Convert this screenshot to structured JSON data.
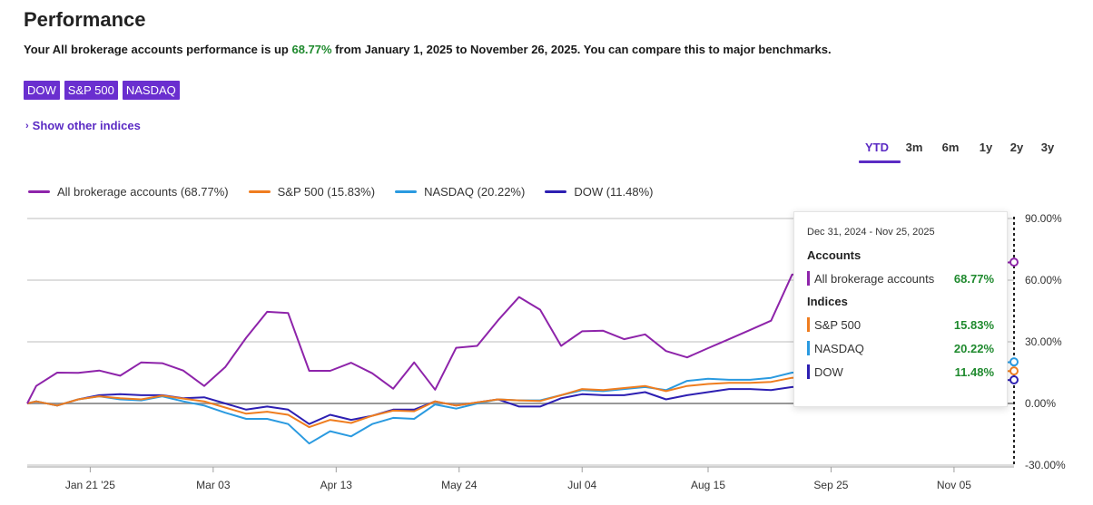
{
  "page": {
    "title": "Performance",
    "summary_prefix": "Your All brokerage accounts performance is up ",
    "summary_value": "68.77%",
    "summary_suffix": " from January 1, 2025 to November 26, 2025. You can compare this to major benchmarks."
  },
  "benchmarks": [
    "DOW",
    "S&P 500",
    "NASDAQ"
  ],
  "show_other": {
    "label": "Show other indices"
  },
  "ranges": {
    "items": [
      "YTD",
      "3m",
      "6m",
      "1y",
      "2y",
      "3y"
    ],
    "active": "YTD"
  },
  "legend": [
    {
      "label": "All brokerage accounts (68.77%)",
      "color": "#8e24aa"
    },
    {
      "label": "S&P 500 (15.83%)",
      "color": "#ef7d1f"
    },
    {
      "label": "NASDAQ (20.22%)",
      "color": "#2a9ae0"
    },
    {
      "label": "DOW (11.48%)",
      "color": "#2d1fb2"
    }
  ],
  "tooltip": {
    "range": "Dec 31, 2024 - Nov 25, 2025",
    "accounts_header": "Accounts",
    "indices_header": "Indices",
    "accounts": [
      {
        "label": "All brokerage accounts",
        "value": "68.77%",
        "color": "#8e24aa"
      }
    ],
    "indices": [
      {
        "label": "S&P 500",
        "value": "15.83%",
        "color": "#ef7d1f"
      },
      {
        "label": "NASDAQ",
        "value": "20.22%",
        "color": "#2a9ae0"
      },
      {
        "label": "DOW",
        "value": "11.48%",
        "color": "#2d1fb2"
      }
    ]
  },
  "chart_data": {
    "type": "line",
    "ylim": [
      -30,
      90
    ],
    "yticks": [
      90,
      60,
      30,
      0,
      -30
    ],
    "ytick_labels": [
      "90.00%",
      "60.00%",
      "30.00%",
      "0.00%",
      "-30.00%"
    ],
    "x_start": "2024-12-31",
    "x_end": "2025-11-25",
    "xticks": [
      {
        "date": "2025-01-21",
        "label": "Jan 21 '25"
      },
      {
        "date": "2025-03-03",
        "label": "Mar 03"
      },
      {
        "date": "2025-04-13",
        "label": "Apr 13"
      },
      {
        "date": "2025-05-24",
        "label": "May 24"
      },
      {
        "date": "2025-07-04",
        "label": "Jul 04"
      },
      {
        "date": "2025-08-15",
        "label": "Aug 15"
      },
      {
        "date": "2025-09-25",
        "label": "Sep 25"
      },
      {
        "date": "2025-11-05",
        "label": "Nov 05"
      }
    ],
    "grid": true,
    "series": [
      {
        "name": "All brokerage accounts (68.77%)",
        "color": "#8e24aa",
        "points": [
          [
            "2024-12-31",
            0
          ],
          [
            "2025-01-03",
            8.5
          ],
          [
            "2025-01-10",
            15
          ],
          [
            "2025-01-17",
            14.9
          ],
          [
            "2025-01-24",
            16
          ],
          [
            "2025-01-31",
            13.5
          ],
          [
            "2025-02-07",
            20
          ],
          [
            "2025-02-14",
            19.6
          ],
          [
            "2025-02-21",
            16
          ],
          [
            "2025-02-28",
            8.5
          ],
          [
            "2025-03-07",
            17.7
          ],
          [
            "2025-03-14",
            32
          ],
          [
            "2025-03-21",
            44.6
          ],
          [
            "2025-03-28",
            44
          ],
          [
            "2025-04-04",
            15.9
          ],
          [
            "2025-04-11",
            15.9
          ],
          [
            "2025-04-18",
            19.8
          ],
          [
            "2025-04-25",
            14.7
          ],
          [
            "2025-05-02",
            7.2
          ],
          [
            "2025-05-09",
            20
          ],
          [
            "2025-05-16",
            6.7
          ],
          [
            "2025-05-23",
            27.1
          ],
          [
            "2025-05-30",
            28
          ],
          [
            "2025-06-06",
            40.5
          ],
          [
            "2025-06-13",
            51.8
          ],
          [
            "2025-06-20",
            45.6
          ],
          [
            "2025-06-27",
            28
          ],
          [
            "2025-07-04",
            35.1
          ],
          [
            "2025-07-11",
            35.4
          ],
          [
            "2025-07-18",
            31.3
          ],
          [
            "2025-07-25",
            33.6
          ],
          [
            "2025-08-01",
            25.5
          ],
          [
            "2025-08-08",
            22.4
          ],
          [
            "2025-08-15",
            26.9
          ],
          [
            "2025-08-22",
            31.3
          ],
          [
            "2025-08-29",
            35.8
          ],
          [
            "2025-09-05",
            40.3
          ],
          [
            "2025-09-12",
            62.7
          ],
          [
            "2025-11-25",
            68.77
          ]
        ]
      },
      {
        "name": "S&P 500 (15.83%)",
        "color": "#ef7d1f",
        "points": [
          [
            "2024-12-31",
            0
          ],
          [
            "2025-01-03",
            1
          ],
          [
            "2025-01-10",
            -1
          ],
          [
            "2025-01-17",
            2
          ],
          [
            "2025-01-24",
            3.5
          ],
          [
            "2025-01-31",
            2.5
          ],
          [
            "2025-02-07",
            2
          ],
          [
            "2025-02-14",
            3.8
          ],
          [
            "2025-02-21",
            2.4
          ],
          [
            "2025-02-28",
            1
          ],
          [
            "2025-03-07",
            -2
          ],
          [
            "2025-03-14",
            -5
          ],
          [
            "2025-03-21",
            -4
          ],
          [
            "2025-03-28",
            -5.5
          ],
          [
            "2025-04-04",
            -11.5
          ],
          [
            "2025-04-11",
            -8
          ],
          [
            "2025-04-18",
            -9.5
          ],
          [
            "2025-04-25",
            -6
          ],
          [
            "2025-05-02",
            -3.5
          ],
          [
            "2025-05-09",
            -3.8
          ],
          [
            "2025-05-16",
            1
          ],
          [
            "2025-05-23",
            -1
          ],
          [
            "2025-05-30",
            0.5
          ],
          [
            "2025-06-06",
            2
          ],
          [
            "2025-06-13",
            1.5
          ],
          [
            "2025-06-20",
            1.2
          ],
          [
            "2025-06-27",
            4
          ],
          [
            "2025-07-04",
            7
          ],
          [
            "2025-07-11",
            6.5
          ],
          [
            "2025-07-18",
            7.5
          ],
          [
            "2025-07-25",
            8.5
          ],
          [
            "2025-08-01",
            6
          ],
          [
            "2025-08-08",
            8.5
          ],
          [
            "2025-08-15",
            9.5
          ],
          [
            "2025-08-22",
            10
          ],
          [
            "2025-08-29",
            10
          ],
          [
            "2025-09-05",
            10.5
          ],
          [
            "2025-09-12",
            12.5
          ],
          [
            "2025-11-25",
            15.83
          ]
        ]
      },
      {
        "name": "NASDAQ (20.22%)",
        "color": "#2a9ae0",
        "points": [
          [
            "2024-12-31",
            0
          ],
          [
            "2025-01-03",
            1
          ],
          [
            "2025-01-10",
            -1
          ],
          [
            "2025-01-17",
            2
          ],
          [
            "2025-01-24",
            3.5
          ],
          [
            "2025-01-31",
            2
          ],
          [
            "2025-02-07",
            1.5
          ],
          [
            "2025-02-14",
            3.5
          ],
          [
            "2025-02-21",
            1
          ],
          [
            "2025-02-28",
            -1
          ],
          [
            "2025-03-07",
            -4.5
          ],
          [
            "2025-03-14",
            -7.5
          ],
          [
            "2025-03-21",
            -7.5
          ],
          [
            "2025-03-28",
            -10
          ],
          [
            "2025-04-04",
            -19.5
          ],
          [
            "2025-04-11",
            -13.5
          ],
          [
            "2025-04-18",
            -16
          ],
          [
            "2025-04-25",
            -10
          ],
          [
            "2025-05-02",
            -7
          ],
          [
            "2025-05-09",
            -7.5
          ],
          [
            "2025-05-16",
            -0.5
          ],
          [
            "2025-05-23",
            -2.5
          ],
          [
            "2025-05-30",
            0
          ],
          [
            "2025-06-06",
            2
          ],
          [
            "2025-06-13",
            1.5
          ],
          [
            "2025-06-20",
            1.5
          ],
          [
            "2025-06-27",
            4
          ],
          [
            "2025-07-04",
            6.5
          ],
          [
            "2025-07-11",
            6
          ],
          [
            "2025-07-18",
            7
          ],
          [
            "2025-07-25",
            8
          ],
          [
            "2025-08-01",
            6.5
          ],
          [
            "2025-08-08",
            11
          ],
          [
            "2025-08-15",
            12
          ],
          [
            "2025-08-22",
            11.5
          ],
          [
            "2025-08-29",
            11.5
          ],
          [
            "2025-09-05",
            12.5
          ],
          [
            "2025-09-12",
            15
          ],
          [
            "2025-11-25",
            20.22
          ]
        ]
      },
      {
        "name": "DOW (11.48%)",
        "color": "#2d1fb2",
        "points": [
          [
            "2024-12-31",
            0
          ],
          [
            "2025-01-03",
            1
          ],
          [
            "2025-01-10",
            -1
          ],
          [
            "2025-01-17",
            2
          ],
          [
            "2025-01-24",
            4
          ],
          [
            "2025-01-31",
            4.5
          ],
          [
            "2025-02-07",
            4
          ],
          [
            "2025-02-14",
            4
          ],
          [
            "2025-02-21",
            2.5
          ],
          [
            "2025-02-28",
            3
          ],
          [
            "2025-03-07",
            0
          ],
          [
            "2025-03-14",
            -3
          ],
          [
            "2025-03-21",
            -1.5
          ],
          [
            "2025-03-28",
            -3
          ],
          [
            "2025-04-04",
            -10
          ],
          [
            "2025-04-11",
            -5.5
          ],
          [
            "2025-04-18",
            -8
          ],
          [
            "2025-04-25",
            -6
          ],
          [
            "2025-05-02",
            -3
          ],
          [
            "2025-05-09",
            -3
          ],
          [
            "2025-05-16",
            1
          ],
          [
            "2025-05-23",
            -1
          ],
          [
            "2025-05-30",
            0.5
          ],
          [
            "2025-06-06",
            2
          ],
          [
            "2025-06-13",
            -1.5
          ],
          [
            "2025-06-20",
            -1.5
          ],
          [
            "2025-06-27",
            2.5
          ],
          [
            "2025-07-04",
            4.5
          ],
          [
            "2025-07-11",
            4
          ],
          [
            "2025-07-18",
            4
          ],
          [
            "2025-07-25",
            5.5
          ],
          [
            "2025-08-01",
            2
          ],
          [
            "2025-08-08",
            4
          ],
          [
            "2025-08-15",
            5.5
          ],
          [
            "2025-08-22",
            7
          ],
          [
            "2025-08-29",
            7
          ],
          [
            "2025-09-05",
            6.5
          ],
          [
            "2025-09-12",
            8
          ],
          [
            "2025-11-25",
            11.48
          ]
        ]
      }
    ]
  }
}
